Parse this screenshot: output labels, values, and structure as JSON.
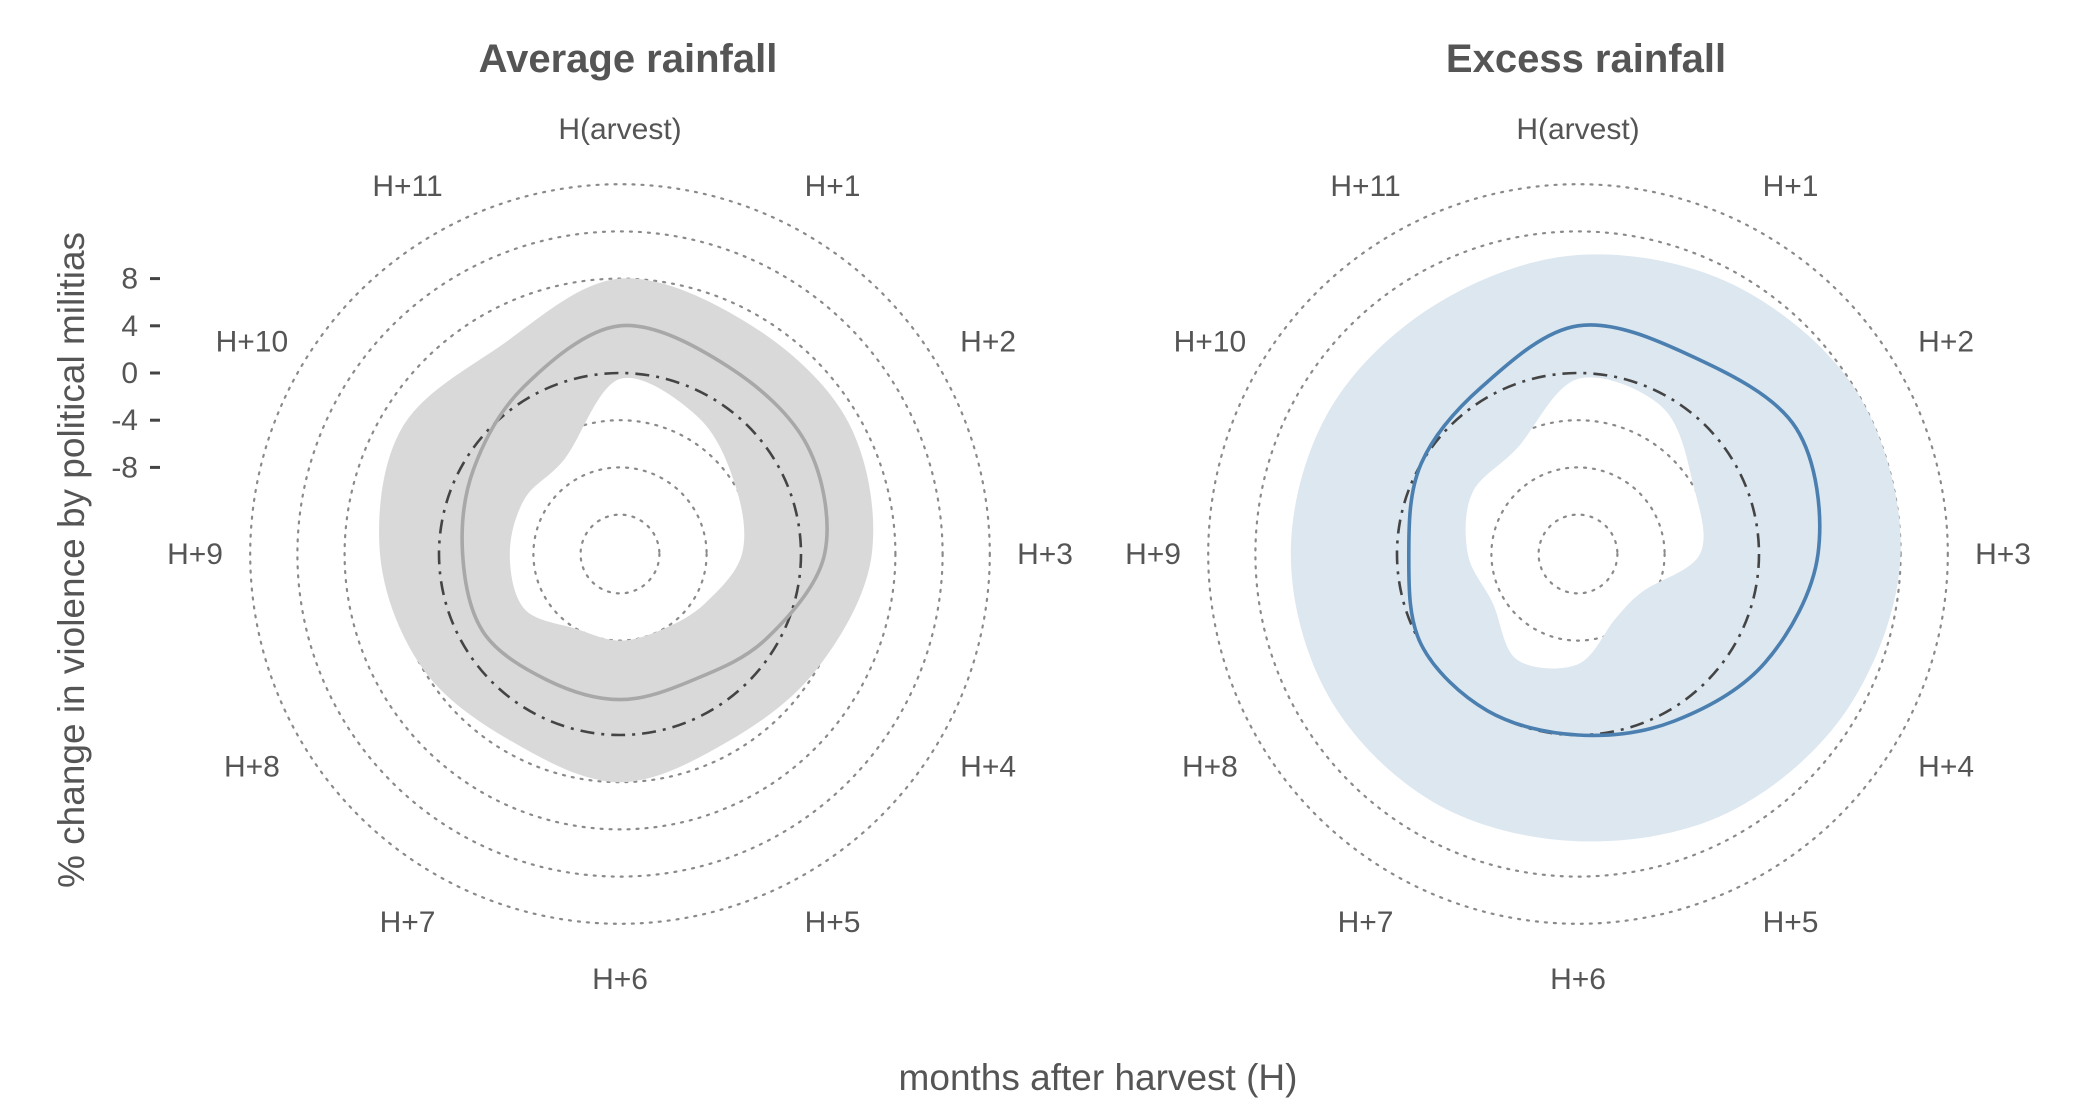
{
  "figure": {
    "xlabel": "months after harvest (H)",
    "ylabel": "% change in violence by political militias"
  },
  "chart_data": [
    {
      "type": "line",
      "polar": true,
      "title": "Average rainfall",
      "categories": [
        "H(arvest)",
        "H+1",
        "H+2",
        "H+3",
        "H+4",
        "H+5",
        "H+6",
        "H+7",
        "H+8",
        "H+9",
        "H+10",
        "H+11"
      ],
      "r_ticks": [
        8,
        4,
        0,
        -4,
        -8
      ],
      "r_range": [
        -20,
        20
      ],
      "grid_rings": [
        -16,
        -12,
        -8,
        -4,
        0,
        4,
        8,
        12,
        16
      ],
      "reference_line": 0,
      "series": [
        {
          "values": [
            4,
            3,
            3,
            2,
            -1,
            -3,
            -3,
            -3,
            -2,
            -2,
            -1,
            1
          ],
          "lower": [
            -0.5,
            -2,
            -4,
            -5,
            -7,
            -8,
            -8,
            -8,
            -6,
            -6,
            -6,
            -6
          ],
          "upper": [
            8,
            7,
            7,
            6,
            4,
            3,
            4,
            3,
            4,
            5,
            6,
            5
          ],
          "color": "#a8a8a8",
          "band_color": "#d9d9d9"
        }
      ]
    },
    {
      "type": "line",
      "polar": true,
      "title": "Excess rainfall",
      "categories": [
        "H(arvest)",
        "H+1",
        "H+2",
        "H+3",
        "H+4",
        "H+5",
        "H+6",
        "H+7",
        "H+8",
        "H+9",
        "H+10",
        "H+11"
      ],
      "r_ticks": [
        8,
        4,
        0,
        -4,
        -8
      ],
      "r_range": [
        -20,
        20
      ],
      "grid_rings": [
        -16,
        -12,
        -8,
        -4,
        0,
        4,
        8,
        12,
        16
      ],
      "reference_line": 0,
      "series": [
        {
          "values": [
            4,
            4,
            6,
            5,
            3,
            1,
            0,
            0,
            0,
            -1,
            0,
            1
          ],
          "lower": [
            -0.5,
            -1,
            -4,
            -5,
            -9,
            -9,
            -6,
            -5,
            -7,
            -6,
            -5,
            -5
          ],
          "upper": [
            10,
            11,
            12,
            12,
            11,
            10,
            9,
            9,
            9,
            9,
            9,
            9
          ],
          "color": "#4a7fb0",
          "band_color": "#dce7f0"
        }
      ]
    }
  ]
}
